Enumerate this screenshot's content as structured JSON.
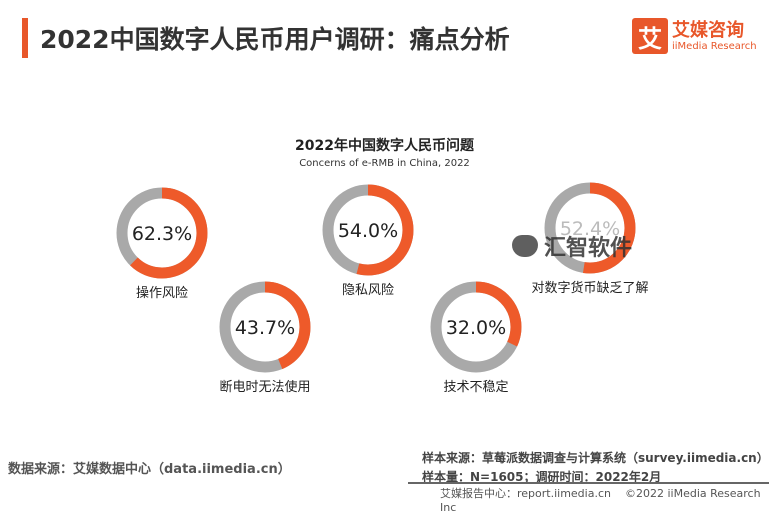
{
  "header": {
    "title": "2022中国数字人民币用户调研：痛点分析"
  },
  "logo": {
    "mark": "艾",
    "cn": "艾媒咨询",
    "en": "iiMedia Research"
  },
  "chart_data": {
    "type": "pie",
    "title": "2022年中国数字人民币问题",
    "subtitle": "Concerns of e-RMB in China, 2022",
    "categories": [
      "操作风险",
      "隐私风险",
      "对数字货币缺乏了解",
      "断电时无法使用",
      "技术不稳定"
    ],
    "values": [
      62.3,
      54.0,
      52.4,
      43.7,
      32.0
    ],
    "labels": [
      "62.3%",
      "54.0%",
      "52.4%",
      "43.7%",
      "32.0%"
    ],
    "colors": {
      "filled": "#ee5a2a",
      "remaining": "#a9a9a9"
    }
  },
  "watermark": {
    "text": "汇智软件"
  },
  "footer": {
    "source_left": "数据来源：艾媒数据中心（data.iimedia.cn）",
    "sample_source": "样本来源：草莓派数据调查与计算系统（survey.iimedia.cn）",
    "sample_size": "样本量：N=1605；调研时间：2022年2月",
    "report": "艾媒报告中心：report.iimedia.cn",
    "copyright": "©2022 iiMedia Research Inc"
  }
}
